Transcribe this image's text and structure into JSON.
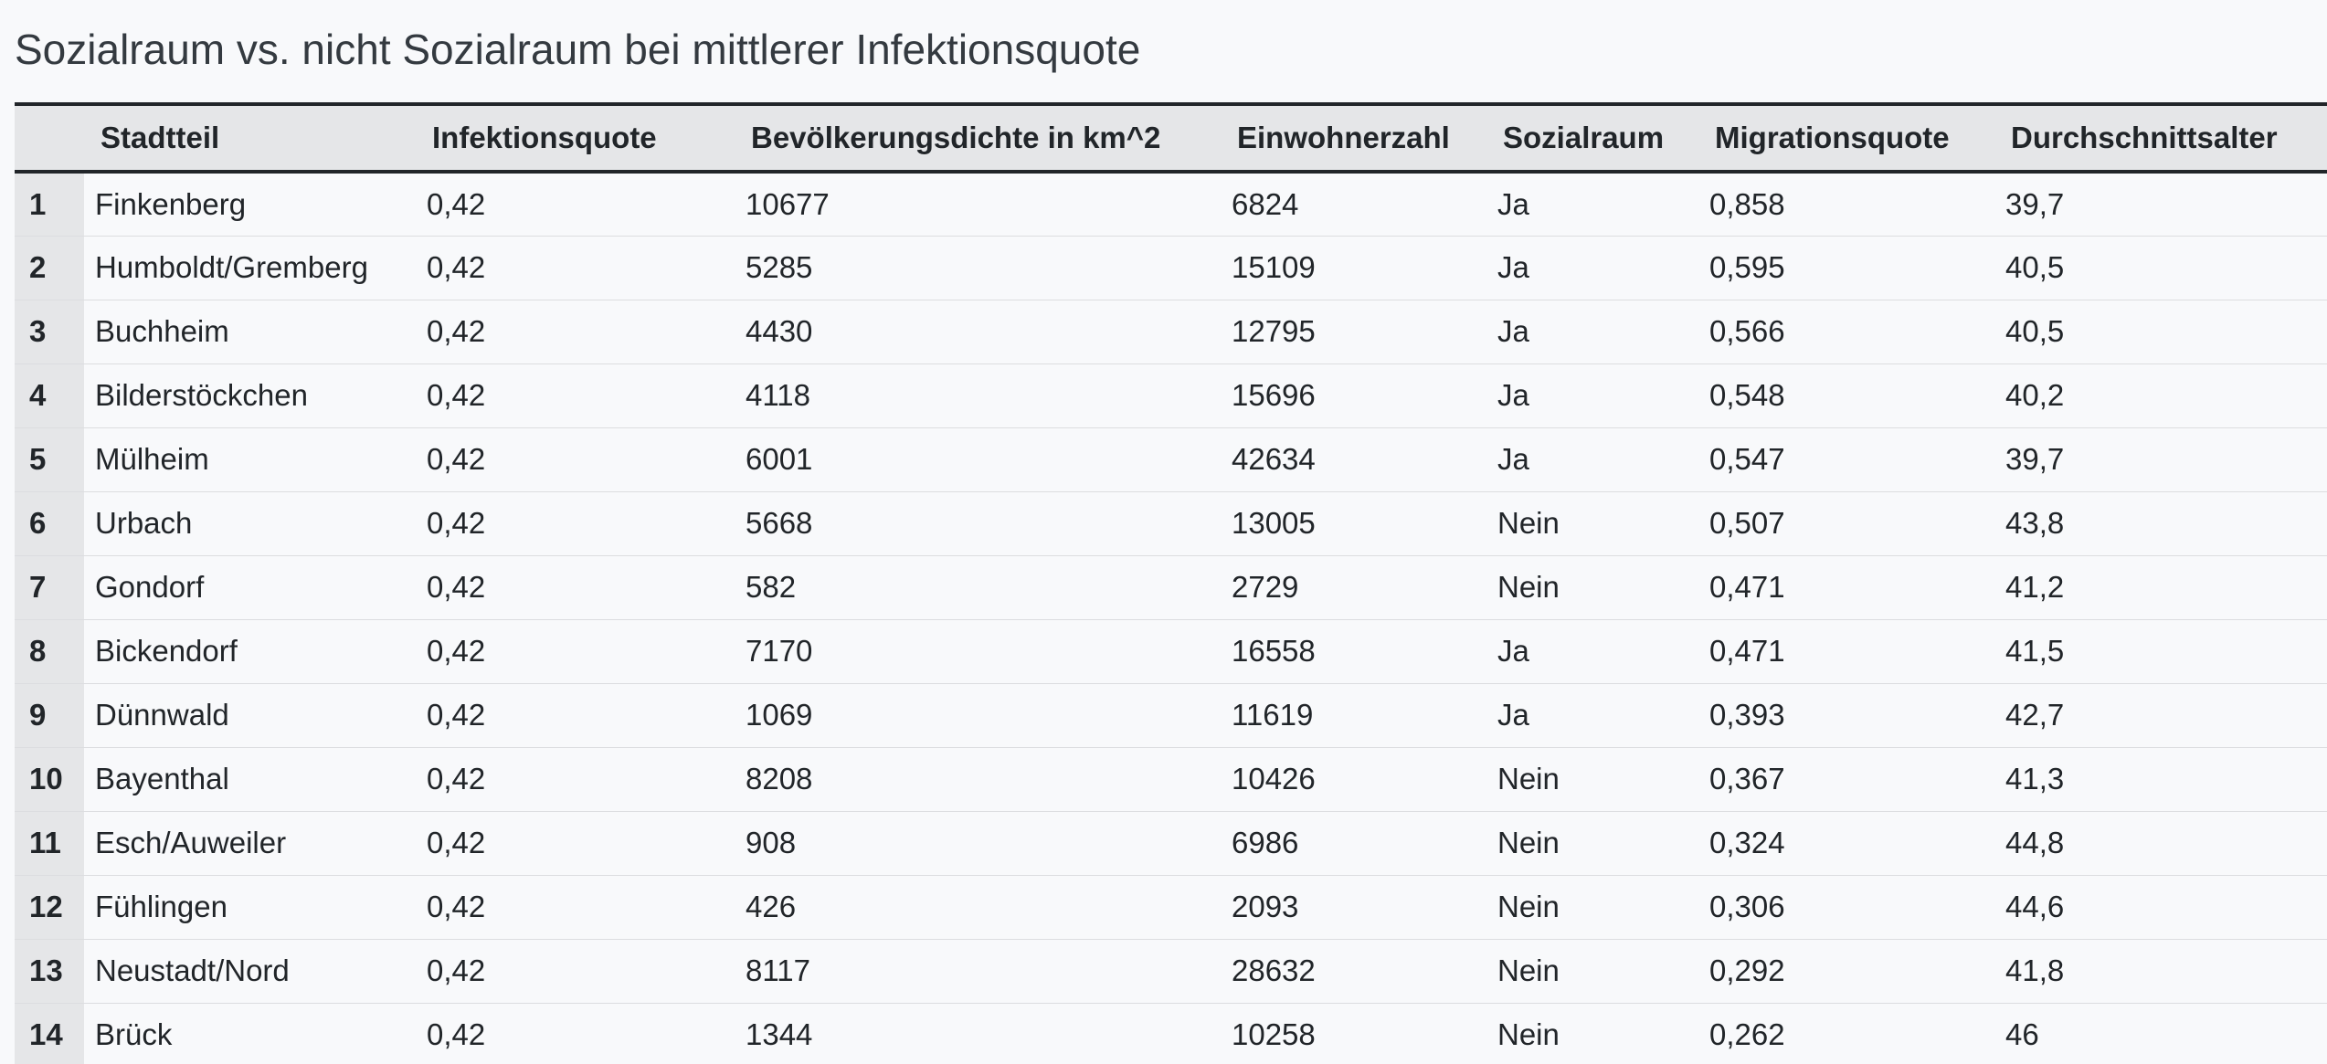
{
  "title": "Sozialraum vs. nicht Sozialraum bei mittlerer Infektionsquote",
  "table": {
    "columns": [
      "",
      "Stadtteil",
      "Infektionsquote",
      "Bevölkerungsdichte in km^2",
      "Einwohnerzahl",
      "Sozialraum",
      "Migrationsquote",
      "Durchschnittsalter"
    ],
    "rows": [
      [
        "1",
        "Finkenberg",
        "0,42",
        "10677",
        "6824",
        "Ja",
        "0,858",
        "39,7"
      ],
      [
        "2",
        "Humboldt/Gremberg",
        "0,42",
        "5285",
        "15109",
        "Ja",
        "0,595",
        "40,5"
      ],
      [
        "3",
        "Buchheim",
        "0,42",
        "4430",
        "12795",
        "Ja",
        "0,566",
        "40,5"
      ],
      [
        "4",
        "Bilderstöckchen",
        "0,42",
        "4118",
        "15696",
        "Ja",
        "0,548",
        "40,2"
      ],
      [
        "5",
        "Mülheim",
        "0,42",
        "6001",
        "42634",
        "Ja",
        "0,547",
        "39,7"
      ],
      [
        "6",
        "Urbach",
        "0,42",
        "5668",
        "13005",
        "Nein",
        "0,507",
        "43,8"
      ],
      [
        "7",
        "Gondorf",
        "0,42",
        "582",
        "2729",
        "Nein",
        "0,471",
        "41,2"
      ],
      [
        "8",
        "Bickendorf",
        "0,42",
        "7170",
        "16558",
        "Ja",
        "0,471",
        "41,5"
      ],
      [
        "9",
        "Dünnwald",
        "0,42",
        "1069",
        "11619",
        "Ja",
        "0,393",
        "42,7"
      ],
      [
        "10",
        "Bayenthal",
        "0,42",
        "8208",
        "10426",
        "Nein",
        "0,367",
        "41,3"
      ],
      [
        "11",
        "Esch/Auweiler",
        "0,42",
        "908",
        "6986",
        "Nein",
        "0,324",
        "44,8"
      ],
      [
        "12",
        "Fühlingen",
        "0,42",
        "426",
        "2093",
        "Nein",
        "0,306",
        "44,6"
      ],
      [
        "13",
        "Neustadt/Nord",
        "0,42",
        "8117",
        "28632",
        "Nein",
        "0,292",
        "41,8"
      ],
      [
        "14",
        "Brück",
        "0,42",
        "1344",
        "10258",
        "Nein",
        "0,262",
        "46"
      ]
    ]
  }
}
